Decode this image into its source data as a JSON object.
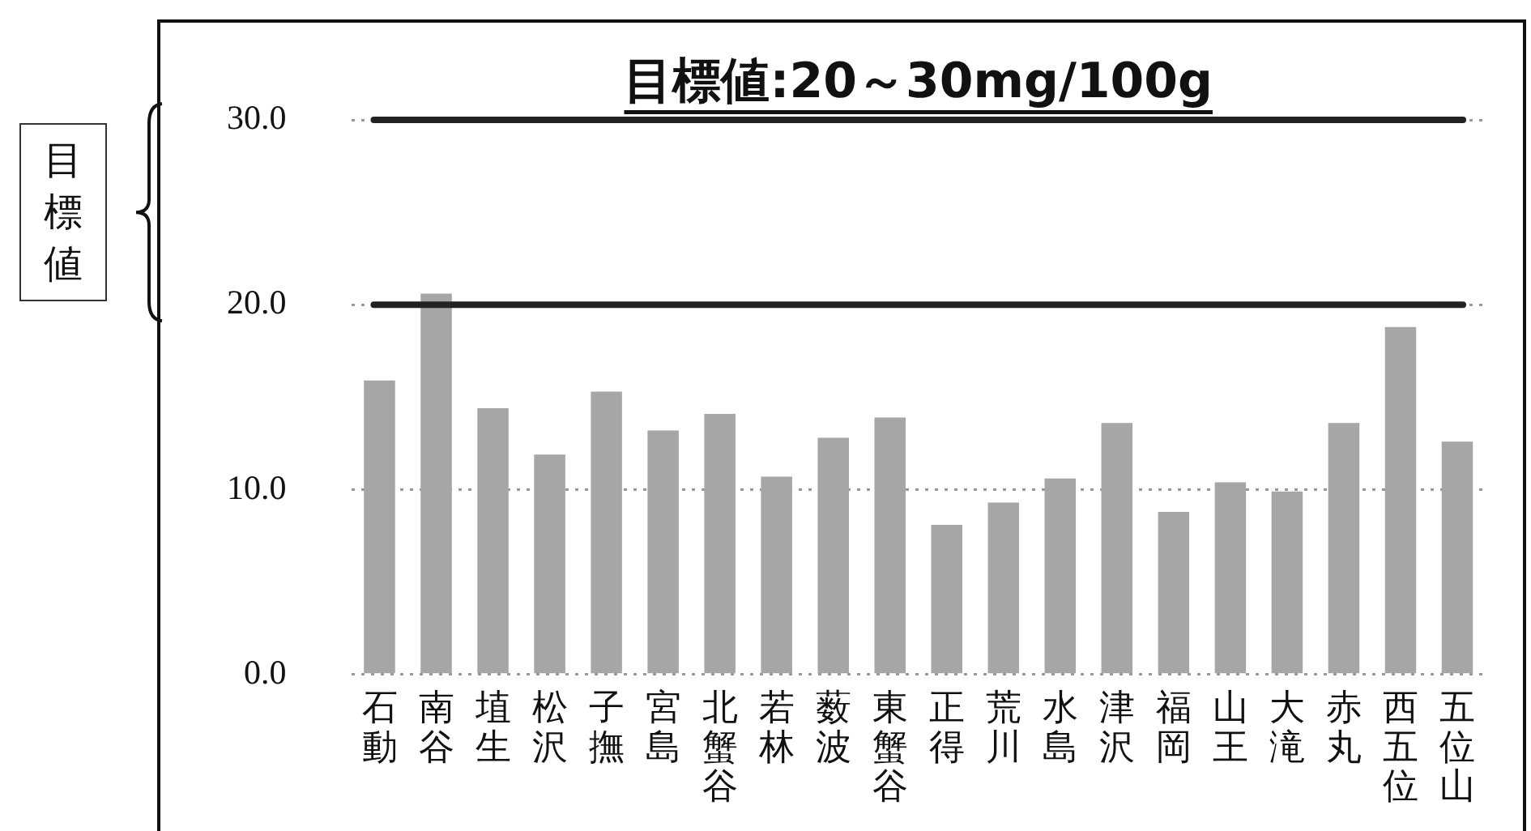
{
  "chart_data": {
    "type": "bar",
    "title": "目標値:20～30mg/100g",
    "categories": [
      "石動",
      "南谷",
      "埴生",
      "松沢",
      "子撫",
      "宮島",
      "北蟹谷",
      "若林",
      "薮波",
      "東蟹谷",
      "正得",
      "荒川",
      "水島",
      "津沢",
      "福岡",
      "山王",
      "大滝",
      "赤丸",
      "西五位",
      "五位山"
    ],
    "values": [
      15.9,
      20.6,
      14.4,
      11.9,
      15.3,
      13.2,
      14.1,
      10.7,
      12.8,
      13.9,
      8.1,
      9.3,
      10.6,
      13.6,
      8.8,
      10.4,
      9.9,
      13.6,
      18.8,
      12.6
    ],
    "color": "#a6a6a6",
    "ylim": [
      0,
      30
    ],
    "yticks": [
      {
        "value": 0,
        "label": "0.0"
      },
      {
        "value": 10,
        "label": "10.0"
      },
      {
        "value": 20,
        "label": "20.0"
      },
      {
        "value": 30,
        "label": "30.0"
      }
    ],
    "grid": "y",
    "legend": false,
    "ref_lines": [
      {
        "axis": "y",
        "value": 20,
        "color": "#222222"
      },
      {
        "axis": "y",
        "value": 30,
        "color": "#222222"
      }
    ],
    "annotations": [
      "目標値"
    ]
  }
}
